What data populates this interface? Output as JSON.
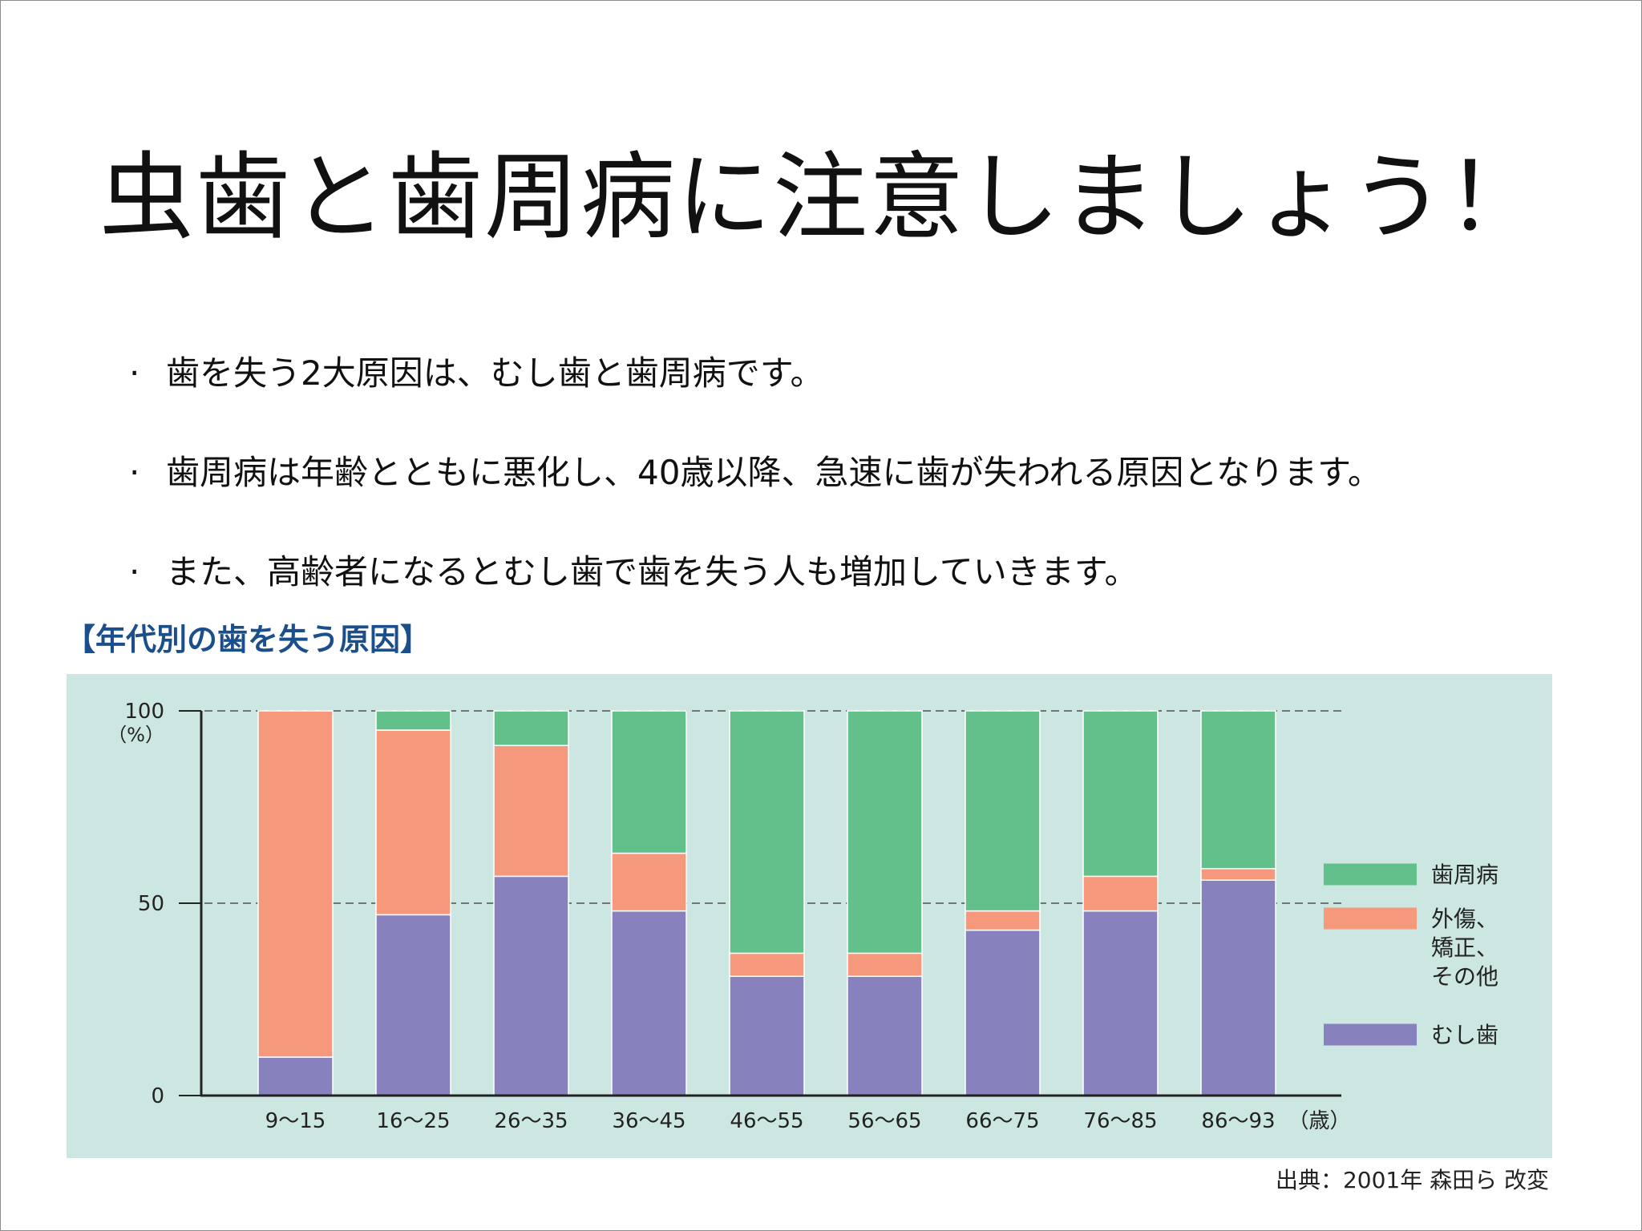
{
  "slide": {
    "title": "虫歯と歯周病に注意しましょう！",
    "bullet_marker": "·",
    "bullets": [
      "歯を失う2大原因は、むし歯と歯周病です。",
      "歯周病は年齢とともに悪化し、40歳以降、急速に歯が失われる原因となります。",
      "また、高齢者になるとむし歯で歯を失う人も増加していきます。"
    ],
    "chart_heading": "【年代別の歯を失う原因】",
    "source": "出典：2001年 森田ら 改変"
  },
  "colors": {
    "periodontal": "#62c18a",
    "trauma": "#f6987b",
    "caries": "#8782be",
    "panel": "#cce7e2"
  },
  "chart_data": {
    "type": "bar",
    "stacked": true,
    "categories": [
      "9〜15",
      "16〜25",
      "26〜35",
      "36〜45",
      "46〜55",
      "56〜65",
      "66〜75",
      "76〜85",
      "86〜93"
    ],
    "x_unit": "（歳）",
    "y_unit": "（%）",
    "ylim": [
      0,
      100
    ],
    "yticks": [
      0,
      50,
      100
    ],
    "gridlines": [
      50,
      100
    ],
    "legend_position": "right",
    "series": [
      {
        "name": "むし歯",
        "values": [
          10,
          47,
          57,
          48,
          31,
          31,
          43,
          48,
          56
        ],
        "color": "#8782be"
      },
      {
        "name": "外傷、矯正、その他",
        "legend_lines": [
          "外傷、",
          "矯正、",
          "その他"
        ],
        "values": [
          90,
          48,
          34,
          15,
          6,
          6,
          5,
          9,
          3
        ],
        "color": "#f6987b"
      },
      {
        "name": "歯周病",
        "values": [
          0,
          5,
          9,
          37,
          63,
          63,
          52,
          43,
          41
        ],
        "color": "#62c18a"
      }
    ],
    "legend_order": [
      "歯周病",
      "外傷、矯正、その他",
      "むし歯"
    ]
  }
}
